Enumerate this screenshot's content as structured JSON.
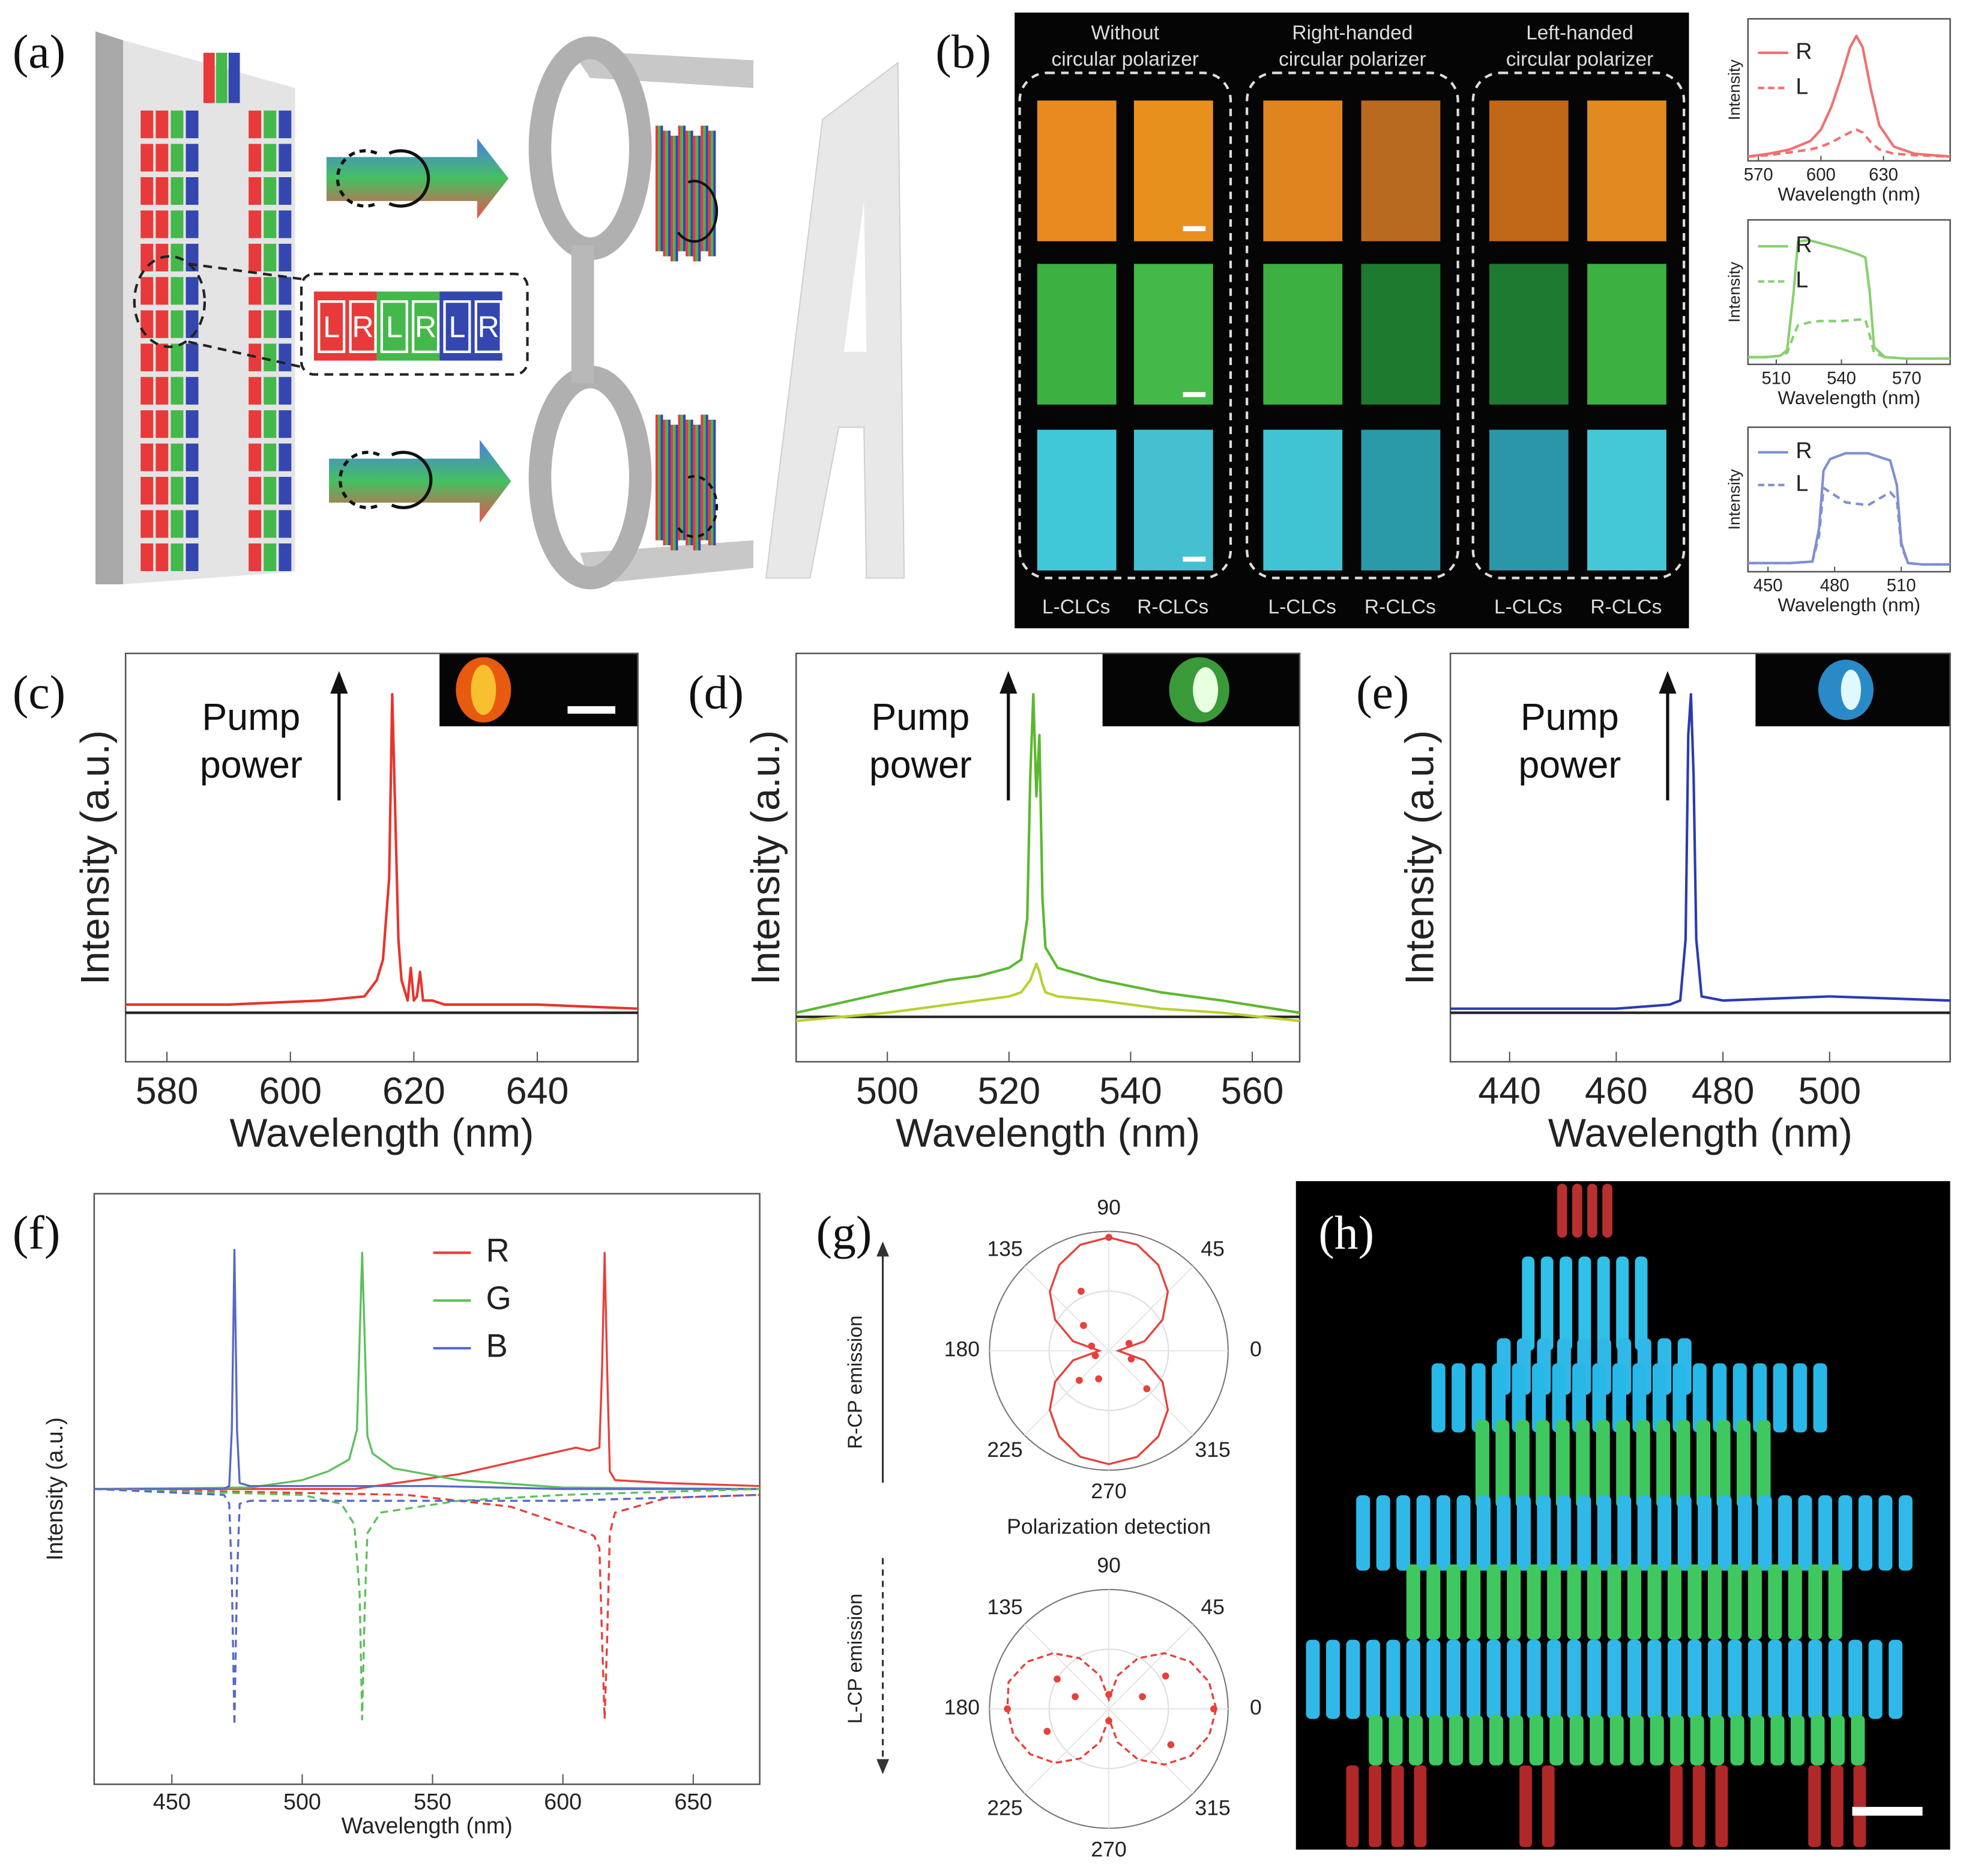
{
  "panel_labels": [
    "(a)",
    "(b)",
    "(c)",
    "(d)",
    "(e)",
    "(f)",
    "(g)",
    "(h)"
  ],
  "panel_a": {
    "pixel_labels": [
      "L",
      "R",
      "L",
      "R",
      "L",
      "R"
    ]
  },
  "panel_b": {
    "headers": [
      [
        "Without",
        "circular polarizer"
      ],
      [
        "Right-handed",
        "circular polarizer"
      ],
      [
        "Left-handed",
        "circular polarizer"
      ]
    ],
    "sample_labels": [
      "L-CLCs",
      "R-CLCs",
      "L-CLCs",
      "R-CLCs",
      "L-CLCs",
      "R-CLCs"
    ]
  },
  "panel_g": {
    "upper_label": "R-CP emission",
    "lower_label": "L-CP emission",
    "middle_label": "Polarization detection"
  },
  "chart_data": [
    {
      "type": "line",
      "x_label": "Wavelength (nm)",
      "y_label": "Intensity",
      "xlim": [
        565,
        662
      ],
      "xticks": [
        570,
        600,
        630
      ],
      "ylim": [
        0,
        1
      ],
      "x": [
        565,
        575,
        585,
        595,
        600,
        605,
        610,
        614,
        617,
        620,
        624,
        628,
        635,
        645,
        662
      ],
      "series": [
        {
          "name": "R",
          "color": "#f07070",
          "values": [
            0.03,
            0.05,
            0.08,
            0.14,
            0.22,
            0.38,
            0.6,
            0.8,
            0.88,
            0.8,
            0.5,
            0.25,
            0.1,
            0.05,
            0.03
          ]
        },
        {
          "name": "L",
          "color": "#f07070",
          "dash": true,
          "values": [
            0.03,
            0.04,
            0.06,
            0.08,
            0.1,
            0.13,
            0.17,
            0.2,
            0.22,
            0.2,
            0.13,
            0.08,
            0.05,
            0.04,
            0.03
          ]
        }
      ]
    },
    {
      "type": "line",
      "x_label": "Wavelength (nm)",
      "y_label": "Intensity",
      "xlim": [
        497,
        590
      ],
      "xticks": [
        510,
        540,
        570
      ],
      "ylim": [
        0,
        1
      ],
      "x": [
        497,
        505,
        512,
        515,
        518,
        520,
        525,
        530,
        540,
        548,
        551,
        553,
        555,
        560,
        570,
        590
      ],
      "series": [
        {
          "name": "R",
          "color": "#88d070",
          "values": [
            0.05,
            0.05,
            0.06,
            0.1,
            0.5,
            0.85,
            0.86,
            0.84,
            0.8,
            0.76,
            0.74,
            0.5,
            0.12,
            0.05,
            0.04,
            0.04
          ]
        },
        {
          "name": "L",
          "color": "#88d070",
          "dash": true,
          "values": [
            0.05,
            0.05,
            0.06,
            0.08,
            0.2,
            0.27,
            0.29,
            0.3,
            0.3,
            0.31,
            0.31,
            0.2,
            0.08,
            0.05,
            0.04,
            0.04
          ]
        }
      ]
    },
    {
      "type": "line",
      "x_label": "Wavelength (nm)",
      "y_label": "Intensity",
      "xlim": [
        441,
        532
      ],
      "xticks": [
        450,
        480,
        510
      ],
      "ylim": [
        0,
        1
      ],
      "x": [
        441,
        460,
        470,
        473,
        475,
        478,
        485,
        495,
        505,
        508,
        510,
        513,
        520,
        532
      ],
      "series": [
        {
          "name": "R",
          "color": "#8090d0",
          "values": [
            0.06,
            0.06,
            0.07,
            0.3,
            0.7,
            0.78,
            0.82,
            0.82,
            0.77,
            0.6,
            0.2,
            0.06,
            0.05,
            0.05
          ]
        },
        {
          "name": "L",
          "color": "#8090d0",
          "dash": true,
          "values": [
            0.06,
            0.06,
            0.07,
            0.25,
            0.58,
            0.55,
            0.48,
            0.46,
            0.55,
            0.5,
            0.18,
            0.06,
            0.05,
            0.05
          ]
        }
      ]
    },
    {
      "type": "line",
      "x_label": "Wavelength (nm)",
      "y_label": "Intensity (a.u.)",
      "annotation": [
        "Pump",
        "power"
      ],
      "xlim": [
        573.3,
        656.3
      ],
      "xticks": [
        580,
        600,
        620,
        640
      ],
      "ylim": [
        0,
        1
      ],
      "x": [
        573.3,
        590,
        605,
        612,
        614,
        615,
        616,
        616.5,
        617,
        617.5,
        618,
        619,
        619.5,
        620,
        620.5,
        621,
        621.5,
        622,
        623,
        625,
        640,
        656.3
      ],
      "series": [
        {
          "color": "#222222",
          "x": [
            573.3,
            656.3
          ],
          "values": [
            0.12,
            0.12
          ]
        },
        {
          "color": "#e8342c",
          "values": [
            0.14,
            0.14,
            0.15,
            0.16,
            0.2,
            0.25,
            0.45,
            0.9,
            0.6,
            0.3,
            0.2,
            0.15,
            0.23,
            0.15,
            0.16,
            0.22,
            0.15,
            0.15,
            0.15,
            0.14,
            0.14,
            0.13
          ]
        }
      ]
    },
    {
      "type": "line",
      "x_label": "Wavelength (nm)",
      "y_label": "Intensity (a.u.)",
      "annotation": [
        "Pump",
        "power"
      ],
      "xlim": [
        485,
        567.8
      ],
      "xticks": [
        500,
        520,
        540,
        560
      ],
      "ylim": [
        0,
        1
      ],
      "x": [
        485,
        500,
        510,
        515,
        520,
        522,
        523,
        523.5,
        524,
        524.5,
        525,
        525.5,
        526,
        528,
        535,
        545,
        555,
        567.8
      ],
      "series": [
        {
          "color": "#222222",
          "x": [
            485,
            567.8
          ],
          "values": [
            0.11,
            0.11
          ]
        },
        {
          "color": "#b8d030",
          "values": [
            0.1,
            0.12,
            0.14,
            0.15,
            0.16,
            0.17,
            0.19,
            0.2,
            0.22,
            0.24,
            0.22,
            0.19,
            0.17,
            0.16,
            0.15,
            0.13,
            0.12,
            0.1
          ]
        },
        {
          "color": "#5cb830",
          "values": [
            0.12,
            0.17,
            0.2,
            0.21,
            0.23,
            0.25,
            0.35,
            0.7,
            0.9,
            0.65,
            0.8,
            0.4,
            0.28,
            0.23,
            0.2,
            0.17,
            0.15,
            0.12
          ]
        }
      ]
    },
    {
      "type": "line",
      "x_label": "Wavelength (nm)",
      "y_label": "Intensity (a.u.)",
      "annotation": [
        "Pump",
        "power"
      ],
      "xlim": [
        428.9,
        522.6
      ],
      "xticks": [
        440,
        460,
        480,
        500
      ],
      "ylim": [
        0,
        1
      ],
      "x": [
        428.9,
        460,
        470,
        472,
        473,
        473.5,
        474,
        474.5,
        475,
        476,
        480,
        500,
        522.6
      ],
      "series": [
        {
          "color": "#222222",
          "x": [
            428.9,
            522.6
          ],
          "values": [
            0.12,
            0.12
          ]
        },
        {
          "color": "#2a3cb0",
          "values": [
            0.13,
            0.13,
            0.14,
            0.15,
            0.3,
            0.8,
            0.9,
            0.7,
            0.3,
            0.16,
            0.15,
            0.16,
            0.15
          ]
        }
      ]
    },
    {
      "type": "line",
      "x_label": "Wavelength (nm)",
      "y_label": "Intensity (a.u.)",
      "xlim": [
        420.2,
        675.5
      ],
      "xticks": [
        450,
        500,
        550,
        600,
        650
      ],
      "ylim": [
        -1,
        1
      ],
      "series": [
        {
          "name": "R",
          "color": "#e8403a",
          "x": [
            420.2,
            520,
            560,
            590,
            605,
            610,
            614,
            615,
            616,
            617,
            618,
            620,
            640,
            675.5
          ],
          "values": [
            0,
            0,
            0.05,
            0.11,
            0.14,
            0.13,
            0.14,
            0.4,
            0.8,
            0.4,
            0.06,
            0.03,
            0.02,
            0.01
          ]
        },
        {
          "name": "G",
          "color": "#5cc05c",
          "x": [
            420.2,
            480,
            500,
            510,
            518,
            521,
            522,
            523,
            524,
            525,
            527,
            535,
            560,
            600,
            675.5
          ],
          "values": [
            0,
            0.005,
            0.03,
            0.06,
            0.1,
            0.2,
            0.5,
            0.8,
            0.5,
            0.18,
            0.12,
            0.07,
            0.03,
            0.005,
            0
          ]
        },
        {
          "name": "B",
          "color": "#5868c8",
          "x": [
            420.2,
            470,
            472,
            473,
            474,
            475,
            476,
            480,
            500,
            550,
            600,
            675.5
          ],
          "values": [
            0,
            0,
            0.01,
            0.2,
            0.81,
            0.2,
            0.02,
            0.01,
            0.01,
            0.01,
            0,
            0
          ]
        },
        {
          "color": "#e8403a",
          "dash": true,
          "x": [
            420.2,
            540,
            580,
            600,
            610,
            612,
            614,
            615,
            616,
            617,
            618,
            620,
            640,
            675.5
          ],
          "values": [
            0,
            -0.02,
            -0.06,
            -0.12,
            -0.15,
            -0.16,
            -0.2,
            -0.5,
            -0.78,
            -0.5,
            -0.15,
            -0.08,
            -0.03,
            -0.02
          ]
        },
        {
          "color": "#5cc05c",
          "dash": true,
          "x": [
            420.2,
            500,
            515,
            520,
            522,
            523,
            524,
            525,
            530,
            560,
            600,
            675.5
          ],
          "values": [
            0,
            -0.02,
            -0.05,
            -0.12,
            -0.35,
            -0.78,
            -0.4,
            -0.15,
            -0.08,
            -0.04,
            -0.02,
            0
          ]
        },
        {
          "color": "#5868c8",
          "dash": true,
          "x": [
            420.2,
            470,
            472,
            473,
            474,
            475,
            476,
            480,
            520,
            600,
            675.5
          ],
          "values": [
            0,
            -0.02,
            -0.05,
            -0.3,
            -0.8,
            -0.3,
            -0.05,
            -0.04,
            -0.04,
            -0.04,
            -0.02
          ]
        }
      ]
    },
    {
      "type": "polar",
      "color": "#e8403a",
      "thetaticks": [
        0,
        45,
        90,
        135,
        180,
        225,
        270,
        315
      ],
      "rlim": [
        0,
        1
      ],
      "rticks": [
        0.5,
        1
      ],
      "theta": [
        0,
        15,
        30,
        45,
        60,
        75,
        90,
        105,
        120,
        135,
        150,
        165,
        180,
        195,
        210,
        225,
        240,
        255,
        270,
        285,
        300,
        315,
        330,
        345
      ],
      "fit": [
        0.08,
        0.31,
        0.52,
        0.7,
        0.83,
        0.92,
        0.95,
        0.92,
        0.83,
        0.7,
        0.52,
        0.31,
        0.08,
        0.31,
        0.52,
        0.7,
        0.83,
        0.92,
        0.95,
        0.92,
        0.83,
        0.7,
        0.52,
        0.31
      ],
      "points_theta": [
        90,
        115,
        135,
        165,
        200,
        225,
        250,
        315,
        340,
        20
      ],
      "points_r": [
        0.95,
        0.55,
        0.3,
        0.15,
        0.12,
        0.35,
        0.25,
        0.45,
        0.2,
        0.18
      ]
    },
    {
      "type": "polar",
      "color": "#e8403a",
      "dash": true,
      "thetaticks": [
        0,
        45,
        90,
        135,
        180,
        225,
        270,
        315
      ],
      "rlim": [
        0,
        1
      ],
      "rticks": [
        0.5,
        1
      ],
      "theta": [
        0,
        15,
        30,
        45,
        60,
        75,
        90,
        105,
        120,
        135,
        150,
        165,
        180,
        195,
        210,
        225,
        240,
        255,
        270,
        285,
        300,
        315,
        330,
        345
      ],
      "fit": [
        0.9,
        0.87,
        0.79,
        0.66,
        0.49,
        0.29,
        0.08,
        0.29,
        0.49,
        0.66,
        0.79,
        0.87,
        0.85,
        0.83,
        0.76,
        0.64,
        0.48,
        0.29,
        0.08,
        0.29,
        0.49,
        0.66,
        0.79,
        0.87
      ],
      "points_theta": [
        0,
        30,
        150,
        180,
        200,
        330,
        90,
        270,
        160,
        20
      ],
      "points_r": [
        0.88,
        0.55,
        0.5,
        0.85,
        0.55,
        0.6,
        0.12,
        0.1,
        0.3,
        0.3
      ]
    }
  ]
}
